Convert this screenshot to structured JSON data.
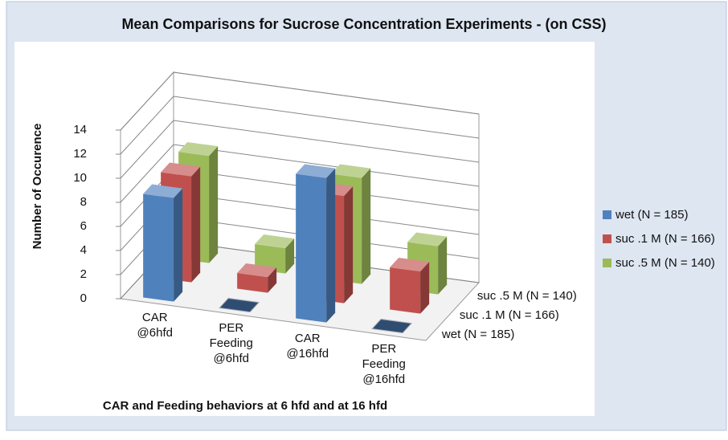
{
  "chart_data": {
    "type": "bar3d",
    "title": "Mean Comparisons for Sucrose Concentration Experiments - (on CSS)",
    "y_label": "Number of Occurence",
    "x_label": "CAR and Feeding behaviors at 6 hfd and  at 16 hfd",
    "categories": [
      "CAR\n@6hfd",
      "PER\nFeeding\n@6hfd",
      "CAR\n@16hfd",
      "PER\nFeeding\n@16hfd"
    ],
    "series": [
      {
        "name": "wet (N = 185)",
        "color": "#4f81bd",
        "values": [
          8.6,
          0,
          12,
          0
        ]
      },
      {
        "name": "suc .1 M (N = 166)",
        "color": "#c0504d",
        "values": [
          8.8,
          1.3,
          8.9,
          3.5
        ]
      },
      {
        "name": "suc .5 M (N = 140)",
        "color": "#9bbb59",
        "values": [
          8.9,
          2.1,
          8.8,
          4
        ]
      }
    ],
    "ylim": [
      0,
      14
    ],
    "yticks": [
      0,
      2,
      4,
      6,
      8,
      10,
      12,
      14
    ],
    "grid": true,
    "legend": "right"
  }
}
